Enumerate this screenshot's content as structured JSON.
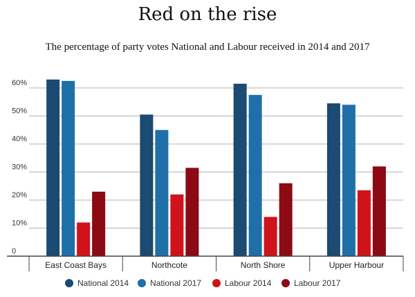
{
  "chart_data": {
    "type": "bar",
    "title": "Red on the rise",
    "subtitle": "The percentage of party votes National and Labour received in 2014 and 2017",
    "categories": [
      "East Coast Bays",
      "Northcote",
      "North Shore",
      "Upper Harbour"
    ],
    "series": [
      {
        "name": "National 2014",
        "color": "#1b4a72",
        "values": [
          63,
          50.5,
          61.5,
          54.5
        ]
      },
      {
        "name": "National 2017",
        "color": "#1f6fa8",
        "values": [
          62.5,
          45,
          57.5,
          54
        ]
      },
      {
        "name": "Labour 2014",
        "color": "#d0121b",
        "values": [
          12,
          22,
          14,
          23.5
        ]
      },
      {
        "name": "Labour 2017",
        "color": "#8b0a14",
        "values": [
          23,
          31.5,
          26,
          32
        ]
      }
    ],
    "y_ticks": [
      "0",
      "10%",
      "20%",
      "30%",
      "40%",
      "50%",
      "60%"
    ],
    "ylim": [
      0,
      60
    ],
    "grid": true,
    "legend_position": "bottom",
    "xlabel": "",
    "ylabel": ""
  }
}
